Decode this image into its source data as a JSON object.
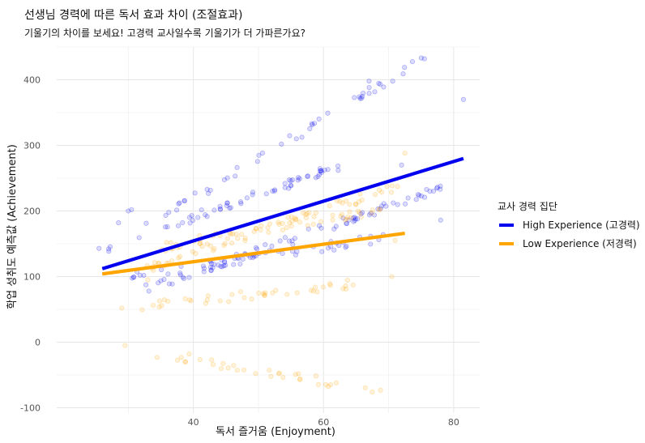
{
  "chart_data": {
    "type": "scatter",
    "title": "선생님 경력에 따른 독서 효과 차이 (조절효과)",
    "subtitle": "기울기의 차이를 보세요! 고경력 교사일수록 기울기가 더 가파른가요?",
    "xlabel": "독서 즐거움 (Enjoyment)",
    "ylabel": "학업 성취도 예측값 (Achievement)",
    "xlim": [
      19,
      84
    ],
    "ylim": [
      -108,
      450
    ],
    "x_ticks": [
      40,
      60,
      80
    ],
    "y_ticks": [
      -100,
      0,
      100,
      200,
      300,
      400
    ],
    "grid": true,
    "legend": {
      "title": "교사 경력 집단",
      "placement": "right",
      "entries": [
        "High Experience (고경력)",
        "Low Experience (저경력)"
      ]
    },
    "series": [
      {
        "name": "High Experience (고경력)",
        "color": "#0000ee",
        "fit_line": {
          "x": [
            26,
            81.5
          ],
          "y": [
            112,
            280
          ]
        },
        "clusters": [
          {
            "x0": 27,
            "y0": 140,
            "x1": 75,
            "y1": 432,
            "n": 50
          },
          {
            "x0": 33,
            "y0": 80,
            "x1": 78,
            "y1": 235,
            "n": 85
          },
          {
            "x0": 30,
            "y0": 100,
            "x1": 70,
            "y1": 160,
            "n": 45
          },
          {
            "x0": 36,
            "y0": 175,
            "x1": 62,
            "y1": 265,
            "n": 55
          }
        ],
        "extra_points": [
          {
            "x": 25.5,
            "y": 143
          },
          {
            "x": 28.5,
            "y": 182
          },
          {
            "x": 30,
            "y": 200
          },
          {
            "x": 30.5,
            "y": 202
          },
          {
            "x": 81.5,
            "y": 370
          },
          {
            "x": 75.5,
            "y": 432
          },
          {
            "x": 67,
            "y": 398
          },
          {
            "x": 72,
            "y": 270
          },
          {
            "x": 78,
            "y": 186
          }
        ]
      },
      {
        "name": "Low Experience (저경력)",
        "color": "#ffa500",
        "fit_line": {
          "x": [
            26,
            72.5
          ],
          "y": [
            104,
            166
          ]
        },
        "clusters": [
          {
            "x0": 35,
            "y0": -17,
            "x1": 71,
            "y1": -78,
            "n": 34
          },
          {
            "x0": 32,
            "y0": 110,
            "x1": 72,
            "y1": 240,
            "n": 60
          },
          {
            "x0": 32,
            "y0": 55,
            "x1": 66,
            "y1": 90,
            "n": 40
          },
          {
            "x0": 35,
            "y0": 145,
            "x1": 70,
            "y1": 205,
            "n": 55
          }
        ],
        "extra_points": [
          {
            "x": 29.5,
            "y": -5
          },
          {
            "x": 29,
            "y": 52
          },
          {
            "x": 33,
            "y": 95
          },
          {
            "x": 72.5,
            "y": 288
          },
          {
            "x": 71,
            "y": 155
          },
          {
            "x": 70.5,
            "y": 100
          }
        ]
      }
    ]
  }
}
